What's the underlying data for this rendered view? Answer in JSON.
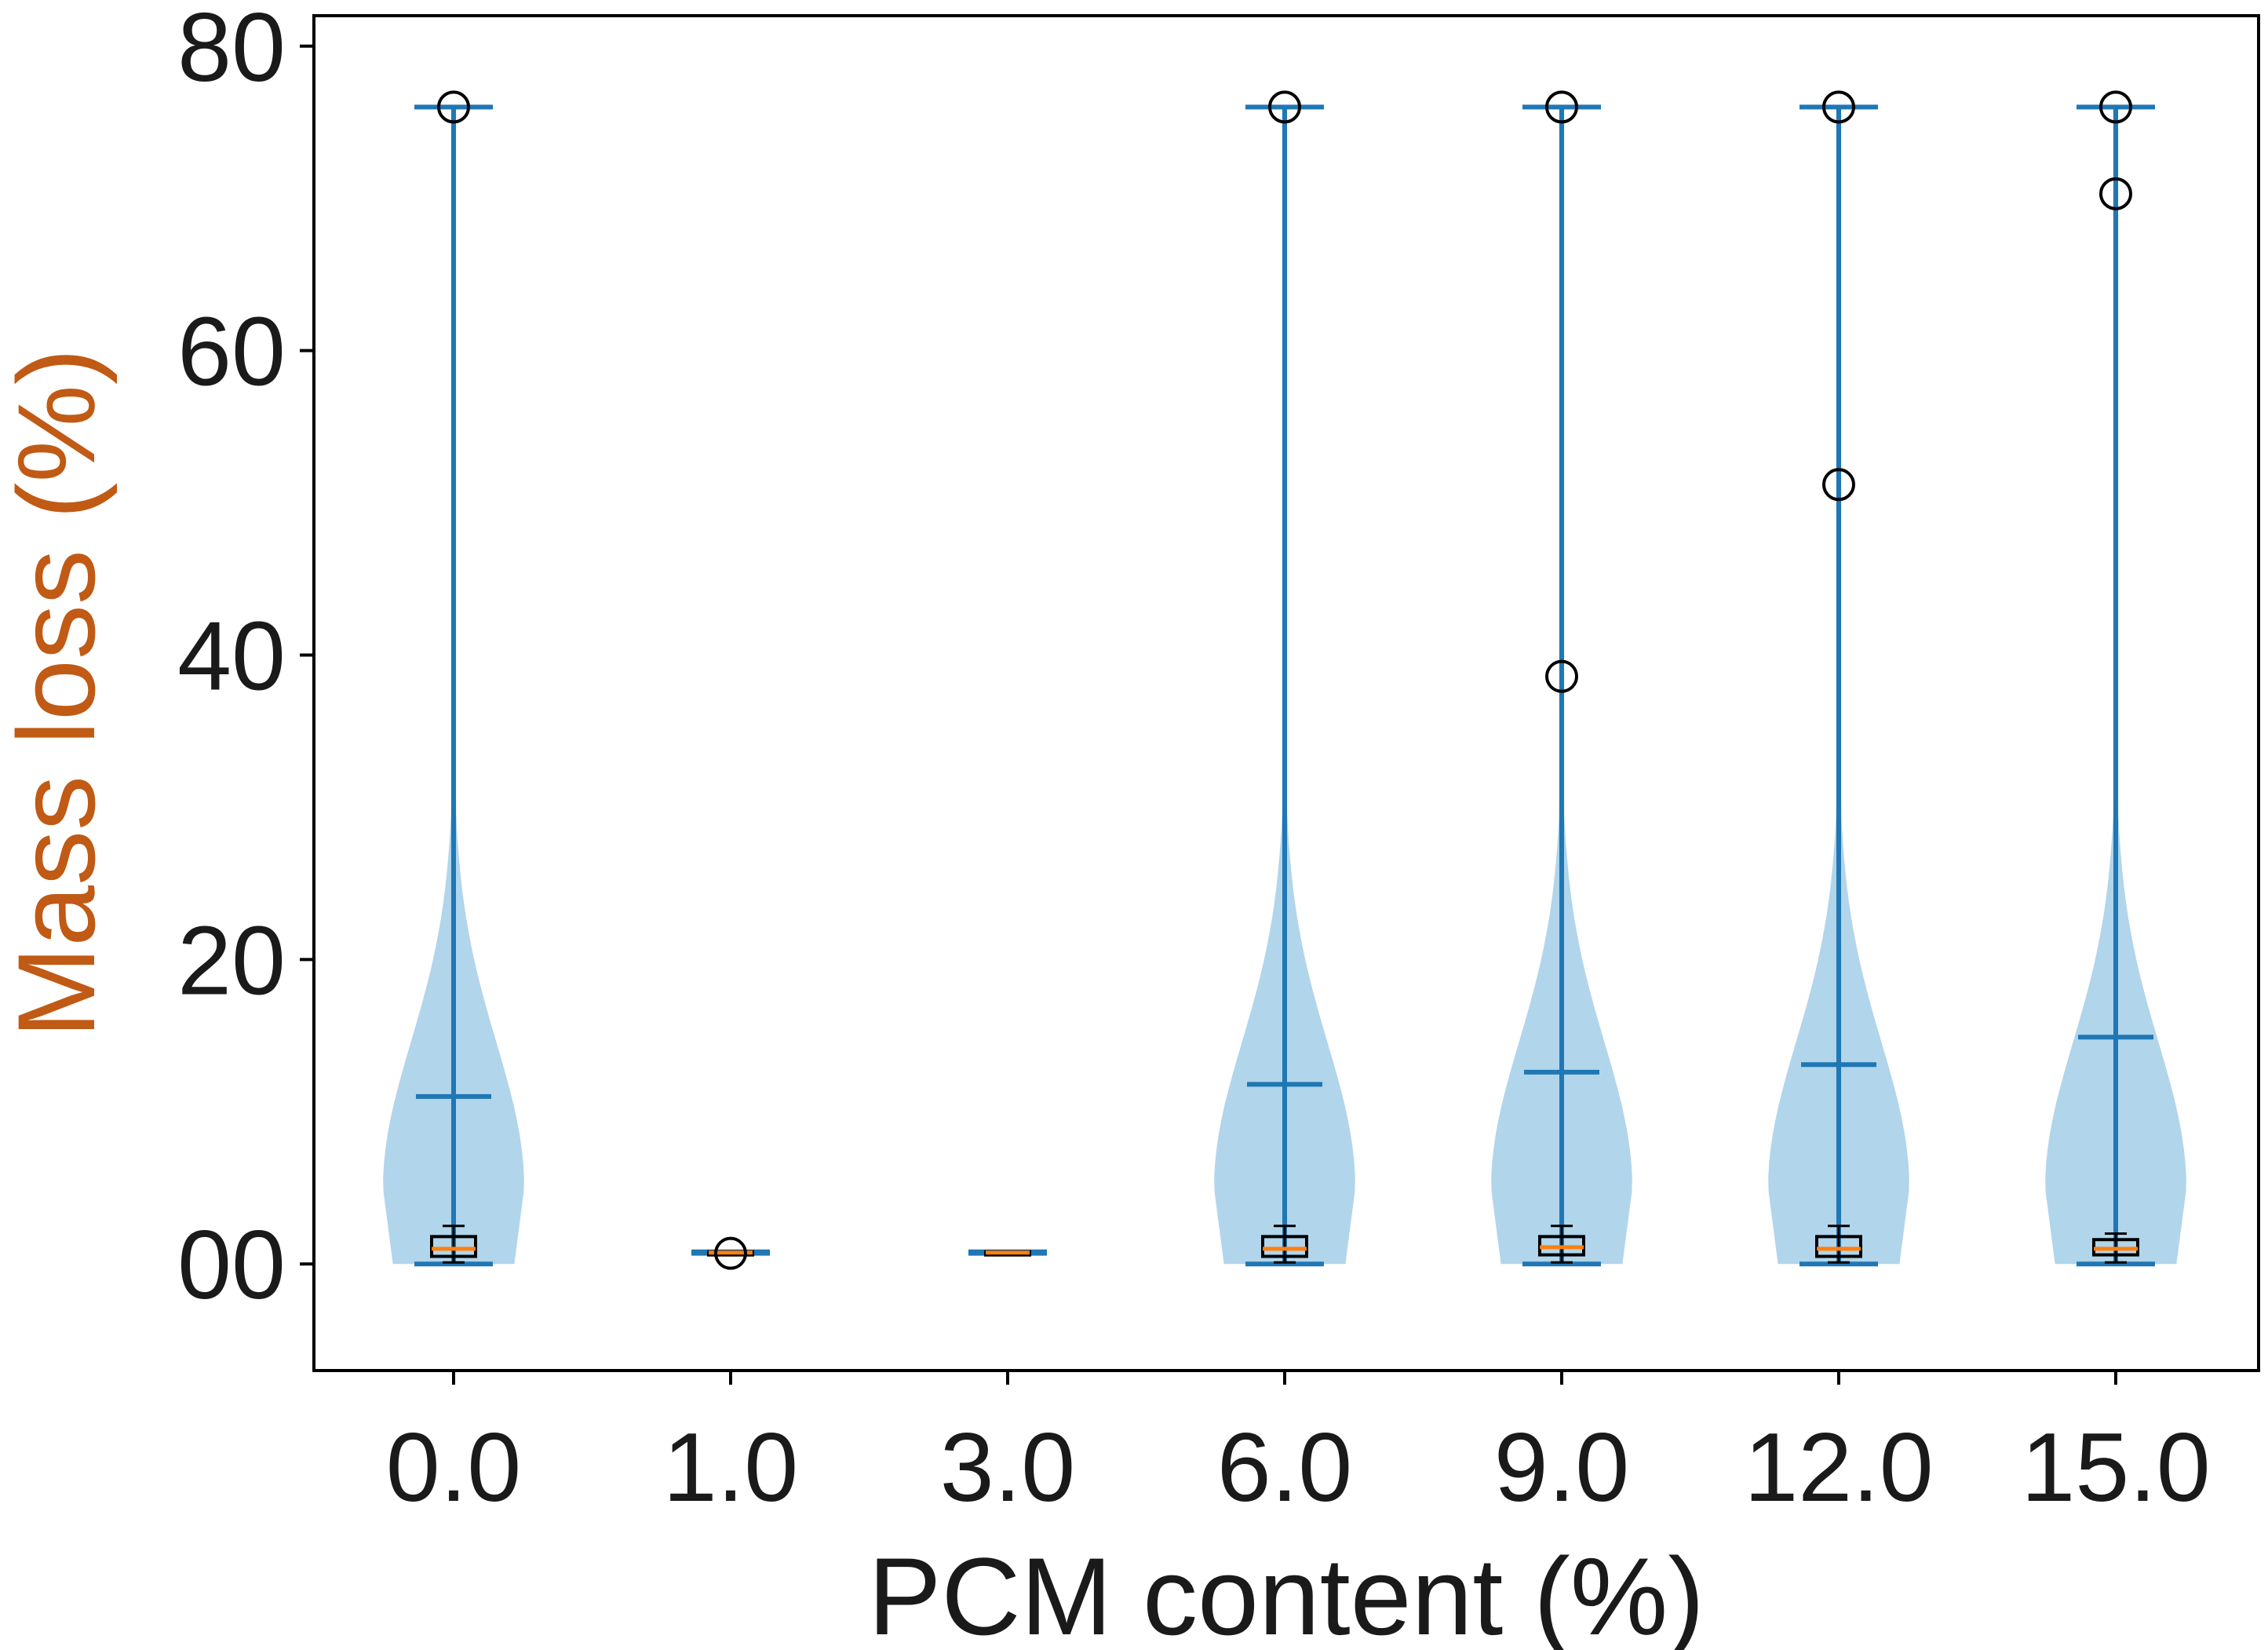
{
  "chart_data": {
    "type": "violin",
    "xlabel": "PCM content (%)",
    "ylabel": "Mass loss (%)",
    "categories": [
      "0.0",
      "1.0",
      "3.0",
      "6.0",
      "9.0",
      "12.0",
      "15.0"
    ],
    "ylim": [
      -7,
      82
    ],
    "yticks": [
      0,
      20,
      40,
      60,
      80
    ],
    "ytick_labels": [
      "00",
      "20",
      "40",
      "60",
      "80"
    ],
    "grid": false,
    "legend": "none",
    "colors": {
      "violin_fill": "#a9d0e9",
      "violin_line": "#1f77b4",
      "median": "#ff7f0e",
      "outlier": "#000000"
    },
    "violins": [
      {
        "category": "0.0",
        "min": 0,
        "max": 76,
        "mean": 11,
        "max_width": 10.0
      },
      {
        "category": "1.0",
        "min": 0.7,
        "max": 0.8,
        "mean": 0.75,
        "max_width": 0
      },
      {
        "category": "3.0",
        "min": 0.7,
        "max": 0.8,
        "mean": 0.75,
        "max_width": 0
      },
      {
        "category": "6.0",
        "min": 0,
        "max": 76,
        "mean": 11.8,
        "max_width": 10.0
      },
      {
        "category": "9.0",
        "min": 0,
        "max": 76,
        "mean": 12.6,
        "max_width": 10.0
      },
      {
        "category": "12.0",
        "min": 0,
        "max": 76,
        "mean": 13.1,
        "max_width": 10.0
      },
      {
        "category": "15.0",
        "min": 0,
        "max": 76,
        "mean": 14.9,
        "max_width": 10.0
      }
    ],
    "boxes": [
      {
        "category": "0.0",
        "q1": 0.5,
        "median": 1.0,
        "q3": 1.8,
        "whisker_low": 0.1,
        "whisker_high": 2.5,
        "outliers": [
          76
        ]
      },
      {
        "category": "1.0",
        "q1": 0.7,
        "median": 0.75,
        "q3": 0.8,
        "whisker_low": 0.7,
        "whisker_high": 0.8,
        "outliers": [
          0.7
        ]
      },
      {
        "category": "3.0",
        "q1": 0.7,
        "median": 0.75,
        "q3": 0.8,
        "whisker_low": 0.7,
        "whisker_high": 0.8,
        "outliers": []
      },
      {
        "category": "6.0",
        "q1": 0.5,
        "median": 1.0,
        "q3": 1.8,
        "whisker_low": 0.1,
        "whisker_high": 2.5,
        "outliers": [
          76
        ]
      },
      {
        "category": "9.0",
        "q1": 0.6,
        "median": 1.1,
        "q3": 1.8,
        "whisker_low": 0.1,
        "whisker_high": 2.5,
        "outliers": [
          38.6,
          76
        ]
      },
      {
        "category": "12.0",
        "q1": 0.5,
        "median": 1.0,
        "q3": 1.8,
        "whisker_low": 0.1,
        "whisker_high": 2.5,
        "outliers": [
          51.2,
          76
        ]
      },
      {
        "category": "15.0",
        "q1": 0.6,
        "median": 1.0,
        "q3": 1.6,
        "whisker_low": 0.1,
        "whisker_high": 2.0,
        "outliers": [
          70.3,
          76
        ]
      }
    ]
  }
}
